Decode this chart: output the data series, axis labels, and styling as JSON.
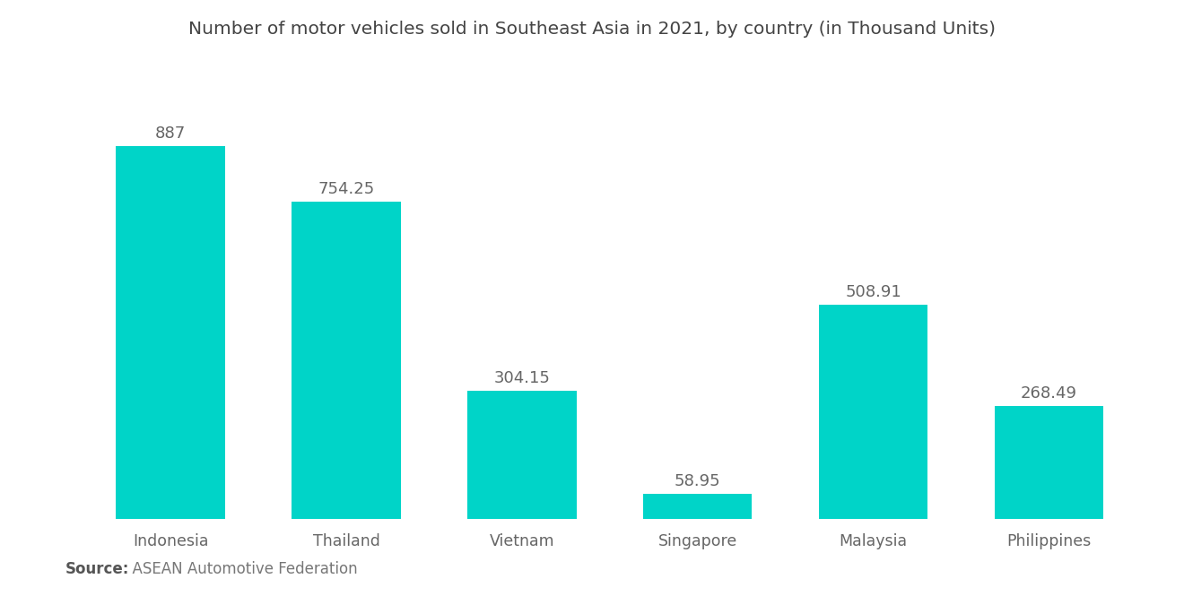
{
  "title": "Number of motor vehicles sold in Southeast Asia in 2021, by country (in Thousand Units)",
  "categories": [
    "Indonesia",
    "Thailand",
    "Vietnam",
    "Singapore",
    "Malaysia",
    "Philippines"
  ],
  "values": [
    887,
    754.25,
    304.15,
    58.95,
    508.91,
    268.49
  ],
  "bar_color": "#00D4C8",
  "value_color": "#666666",
  "label_color": "#666666",
  "background_color": "#ffffff",
  "source_bold": "Source:",
  "source_rest": "  ASEAN Automotive Federation",
  "title_fontsize": 14.5,
  "label_fontsize": 12.5,
  "value_fontsize": 13,
  "source_fontsize": 12,
  "ylim": [
    0,
    1050
  ],
  "bar_width": 0.62
}
